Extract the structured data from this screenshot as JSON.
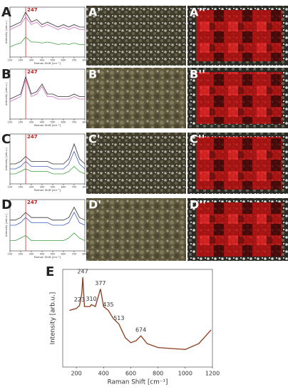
{
  "chart_data": [
    {
      "type": "line",
      "label": "A",
      "marker": 247,
      "ylabel": "Intensity [arb.u.]",
      "xlabel": "Raman Shift [cm⁻¹]",
      "x": [
        100,
        150,
        200,
        247,
        300,
        350,
        400,
        450,
        500,
        550,
        600,
        650,
        700,
        750,
        800
      ],
      "xlim": [
        100,
        800
      ],
      "ylim": [
        0,
        10
      ],
      "xticks": [
        100,
        200,
        300,
        400,
        500,
        600,
        700,
        800
      ],
      "series": [
        {
          "color": "#333333",
          "values": [
            6,
            6.5,
            7,
            9,
            7,
            7.5,
            6.5,
            7,
            6.5,
            6,
            6.5,
            6,
            6.5,
            6,
            6
          ]
        },
        {
          "color": "#d070c0",
          "values": [
            5.5,
            6,
            6.5,
            8,
            6.5,
            7,
            6,
            6.5,
            6,
            5.5,
            6,
            5.5,
            6,
            5.5,
            5.5
          ]
        },
        {
          "color": "#40a040",
          "values": [
            2,
            2.5,
            2.8,
            4,
            3,
            3,
            2.8,
            3,
            2.8,
            2.5,
            2.7,
            2.5,
            2.8,
            2.5,
            2.5
          ]
        }
      ]
    },
    {
      "type": "line",
      "label": "B",
      "marker": 247,
      "ylabel": "Intensity [arb.u.]",
      "xlabel": "Raman Shift [cm⁻¹]",
      "x": [
        100,
        150,
        200,
        247,
        300,
        350,
        400,
        450,
        500,
        550,
        600,
        650,
        700,
        750,
        800
      ],
      "xlim": [
        100,
        800
      ],
      "ylim": [
        0,
        10
      ],
      "xticks": [
        100,
        200,
        300,
        400,
        500,
        600,
        700,
        800
      ],
      "series": [
        {
          "color": "#333333",
          "values": [
            4,
            4.5,
            5,
            8.5,
            5,
            5.5,
            7,
            5,
            5,
            4.5,
            4.5,
            4.5,
            5,
            4.5,
            4.5
          ]
        },
        {
          "color": "#d070c0",
          "values": [
            3.5,
            4,
            4.5,
            8,
            4.5,
            5,
            6.5,
            4.5,
            4.5,
            4,
            4,
            4,
            4.5,
            4,
            4
          ]
        }
      ]
    },
    {
      "type": "line",
      "label": "C",
      "marker": 247,
      "ylabel": "Intensity [arb.u.]",
      "xlabel": "Raman Shift [cm⁻¹]",
      "x": [
        100,
        150,
        200,
        247,
        300,
        350,
        400,
        450,
        500,
        550,
        600,
        650,
        700,
        750,
        800
      ],
      "xlim": [
        100,
        800
      ],
      "ylim": [
        0,
        10
      ],
      "xticks": [
        100,
        200,
        300,
        400,
        500,
        600,
        700,
        800
      ],
      "series": [
        {
          "color": "#333333",
          "values": [
            4,
            4,
            4.5,
            5.5,
            4.5,
            4.5,
            4.5,
            4.5,
            4,
            4,
            4,
            5,
            8,
            5,
            4
          ]
        },
        {
          "color": "#4060c0",
          "values": [
            3,
            3,
            3.5,
            4.5,
            3.5,
            3.5,
            3.5,
            3.5,
            3,
            3,
            3,
            4,
            6.5,
            4,
            3
          ]
        },
        {
          "color": "#40a040",
          "values": [
            2,
            2,
            2.5,
            3,
            2.5,
            2.5,
            2.5,
            2.5,
            2,
            2,
            2,
            2.5,
            3.5,
            2.5,
            2
          ]
        }
      ]
    },
    {
      "type": "line",
      "label": "D",
      "marker": 247,
      "ylabel": "Intensity [arb.u.]",
      "xlabel": "Raman Shift [cm⁻¹]",
      "x": [
        100,
        150,
        200,
        247,
        300,
        350,
        400,
        450,
        500,
        550,
        600,
        650,
        700,
        750,
        800
      ],
      "xlim": [
        100,
        800
      ],
      "ylim": [
        0,
        10
      ],
      "xticks": [
        100,
        200,
        300,
        400,
        500,
        600,
        700,
        800
      ],
      "series": [
        {
          "color": "#333333",
          "values": [
            6,
            6,
            6.5,
            7.5,
            6.5,
            6.5,
            6.5,
            6.5,
            6,
            6,
            6,
            6.5,
            8.5,
            6.5,
            6
          ]
        },
        {
          "color": "#4060c0",
          "values": [
            5,
            5,
            5.5,
            6.5,
            5.5,
            5.5,
            5.5,
            5.5,
            5,
            5,
            5,
            5.5,
            7.5,
            5.5,
            5
          ]
        },
        {
          "color": "#40a040",
          "values": [
            2,
            2,
            2.5,
            3,
            2,
            2,
            2,
            2,
            2,
            2,
            2,
            2.5,
            3.5,
            2.5,
            2
          ]
        }
      ]
    },
    {
      "type": "line",
      "label": "E",
      "ylabel": "Intensity [arb.u.]",
      "xlabel": "Raman Shift [cm⁻¹]",
      "x": [
        150,
        200,
        223,
        240,
        247,
        260,
        300,
        310,
        340,
        377,
        400,
        435,
        470,
        513,
        560,
        600,
        640,
        674,
        720,
        800,
        900,
        1000,
        1100,
        1190
      ],
      "xlim": [
        100,
        1200
      ],
      "ylim": [
        0,
        100
      ],
      "xticks": [
        200,
        400,
        600,
        800,
        1000,
        1200
      ],
      "peaks": [
        223,
        247,
        310,
        377,
        435,
        513,
        674
      ],
      "series": [
        {
          "color": "#8b3a1a",
          "values": [
            58,
            60,
            63,
            75,
            92,
            62,
            62,
            64,
            62,
            80,
            62,
            58,
            50,
            44,
            30,
            25,
            27,
            32,
            24,
            20,
            19,
            18,
            24,
            38
          ]
        }
      ]
    }
  ],
  "panels": [
    "A'",
    "A''",
    "B'",
    "B''",
    "C'",
    "C''",
    "D'",
    "D''"
  ]
}
